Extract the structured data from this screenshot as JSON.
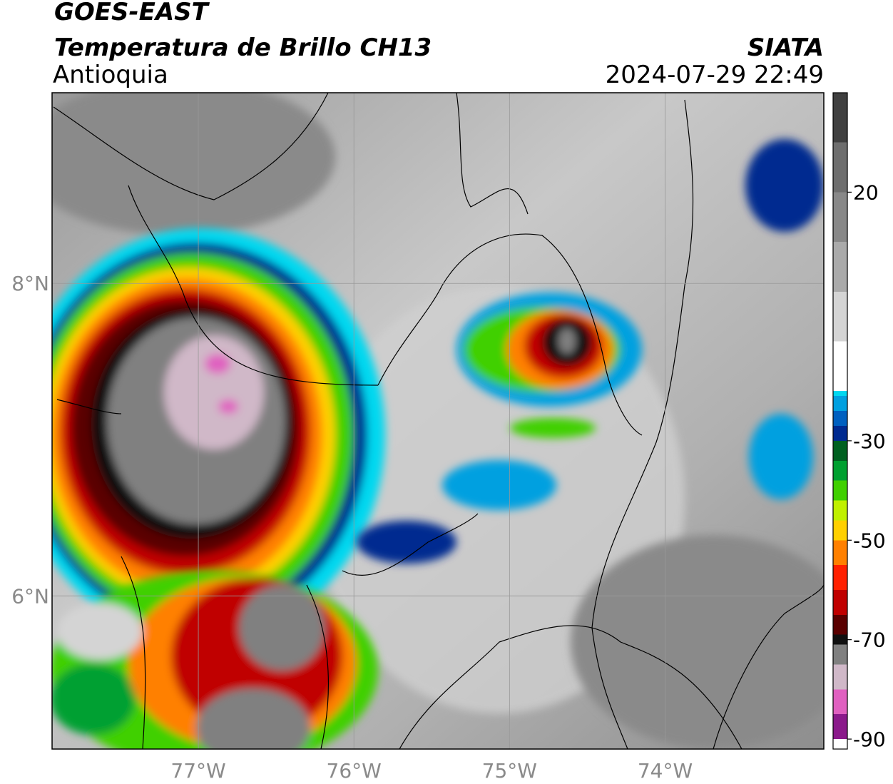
{
  "map": {
    "title": "GOES-EAST",
    "subtitle": "Temperatura de Brillo CH13",
    "region": "Antioquia",
    "source": "SIATA",
    "timestamp": "2024-07-29 22:49",
    "xlim": [
      -77.94,
      -72.98
    ],
    "ylim": [
      5.02,
      9.22
    ],
    "xticks": [
      {
        "value": -77,
        "label": "77°W"
      },
      {
        "value": -76,
        "label": "76°W"
      },
      {
        "value": -75,
        "label": "75°W"
      },
      {
        "value": -74,
        "label": "74°W"
      }
    ],
    "yticks": [
      {
        "value": 6,
        "label": "6°N"
      },
      {
        "value": 8,
        "label": "8°N"
      }
    ],
    "grid": true,
    "colorbar": {
      "clim": [
        -92,
        40
      ],
      "ticks": [
        20,
        -30,
        -50,
        -70,
        -90
      ],
      "colormap": [
        {
          "value": -92,
          "color": "#ffffff"
        },
        {
          "value": -90,
          "color": "#8b1a8b"
        },
        {
          "value": -85,
          "color": "#e060c0"
        },
        {
          "value": -80,
          "color": "#d0b8c8"
        },
        {
          "value": -75,
          "color": "#808080"
        },
        {
          "value": -71,
          "color": "#101010"
        },
        {
          "value": -69,
          "color": "#5a0000"
        },
        {
          "value": -65,
          "color": "#c00000"
        },
        {
          "value": -60,
          "color": "#ff2000"
        },
        {
          "value": -55,
          "color": "#ff8000"
        },
        {
          "value": -50,
          "color": "#ffd000"
        },
        {
          "value": -46,
          "color": "#c0f000"
        },
        {
          "value": -42,
          "color": "#40d000"
        },
        {
          "value": -38,
          "color": "#00a030"
        },
        {
          "value": -34,
          "color": "#006020"
        },
        {
          "value": -30,
          "color": "#002a90"
        },
        {
          "value": -27,
          "color": "#0060c0"
        },
        {
          "value": -24,
          "color": "#00a0e0"
        },
        {
          "value": -21,
          "color": "#00d8f0"
        },
        {
          "value": -20,
          "color": "#ffffff"
        },
        {
          "value": -10,
          "color": "#d4d4d4"
        },
        {
          "value": 0,
          "color": "#aaaaaa"
        },
        {
          "value": 10,
          "color": "#888888"
        },
        {
          "value": 20,
          "color": "#6e6e6e"
        },
        {
          "value": 30,
          "color": "#404040"
        },
        {
          "value": 40,
          "color": "#000000"
        }
      ]
    }
  }
}
